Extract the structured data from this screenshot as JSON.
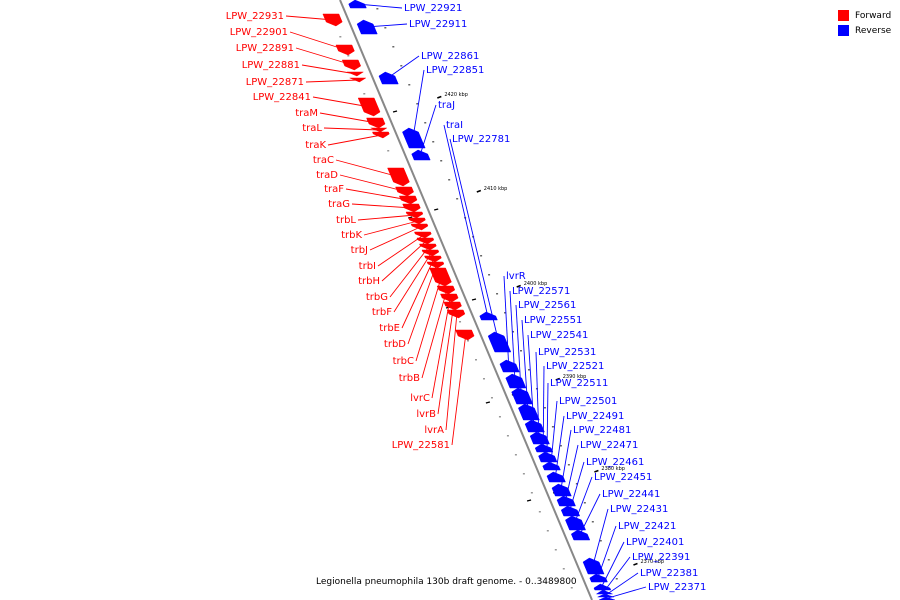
{
  "legend": [
    {
      "label": "Forward",
      "color": "#ff0000"
    },
    {
      "label": "Reverse",
      "color": "#0000ff"
    }
  ],
  "colors": {
    "forward": "#ff0000",
    "reverse": "#0000ff",
    "backbone": "#888888",
    "tick_mark": "#000000"
  },
  "caption": "Legionella pneumophila 130b draft genome. - 0..3489800",
  "tick_labels": [
    "2420 kbp",
    "2410 kbp",
    "2400 kbp",
    "2390 kbp",
    "2380 kbp",
    "2370 kbp"
  ],
  "forward_labels": [
    "LPW_22931",
    "LPW_22901",
    "LPW_22891",
    "LPW_22881",
    "LPW_22871",
    "LPW_22841",
    "traM",
    "traL",
    "traK",
    "traC",
    "traD",
    "traF",
    "traG",
    "trbL",
    "trbK",
    "trbJ",
    "trbI",
    "trbH",
    "trbG",
    "trbF",
    "trbE",
    "trbD",
    "trbC",
    "trbB",
    "lvrC",
    "lvrB",
    "lvrA",
    "LPW_22581"
  ],
  "reverse_labels": [
    "LPW_22921",
    "LPW_22911",
    "LPW_22861",
    "LPW_22851",
    "traJ",
    "traI",
    "LPW_22781",
    "lvrR",
    "LPW_22571",
    "LPW_22561",
    "LPW_22551",
    "LPW_22541",
    "LPW_22531",
    "LPW_22521",
    "LPW_22511",
    "LPW_22501",
    "LPW_22491",
    "LPW_22481",
    "LPW_22471",
    "LPW_22461",
    "LPW_22451",
    "LPW_22441",
    "LPW_22431",
    "LPW_22421",
    "LPW_22401",
    "LPW_22391",
    "LPW_22381",
    "LPW_22371"
  ]
}
